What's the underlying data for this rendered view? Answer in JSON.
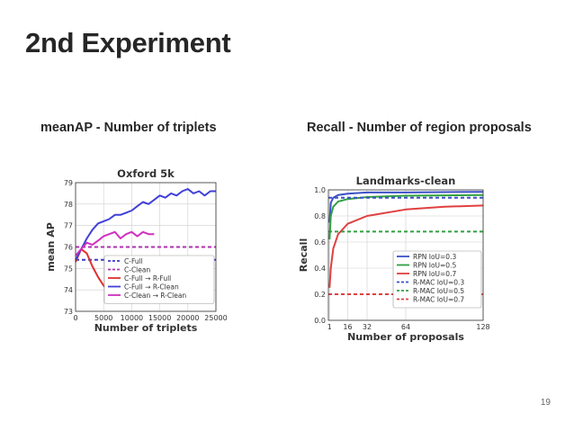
{
  "slide": {
    "title": "2nd Experiment",
    "page_number": "19",
    "caption_left": "meanAP - Number of triplets",
    "caption_right": "Recall -  Number of  region proposals"
  },
  "chart_data": [
    {
      "type": "line",
      "title": "Oxford 5k",
      "xlabel": "Number of triplets",
      "ylabel": "mean AP",
      "xlim": [
        0,
        25000
      ],
      "ylim": [
        73,
        79
      ],
      "xticks": [
        0,
        5000,
        10000,
        15000,
        20000,
        25000
      ],
      "xtick_labels": [
        "0",
        "5000",
        "10000",
        "15000",
        "20000",
        "25000"
      ],
      "yticks": [
        73,
        74,
        75,
        76,
        77,
        78,
        79
      ],
      "ytick_labels": [
        "73",
        "74",
        "75",
        "76",
        "77",
        "78",
        "79"
      ],
      "grid": true,
      "legend": "lower-right",
      "series": [
        {
          "name": "C-Full",
          "style": "dashed",
          "color": "#3b3bc8",
          "x": [
            0,
            25000
          ],
          "y": [
            75.4,
            75.4
          ]
        },
        {
          "name": "C-Clean",
          "style": "dashed",
          "color": "#b030b0",
          "x": [
            0,
            25000
          ],
          "y": [
            76.0,
            76.0
          ]
        },
        {
          "name": "C-Full → R-Full",
          "style": "solid",
          "color": "#e03030",
          "x": [
            0,
            1000,
            2000,
            3000,
            4000,
            5000,
            6000,
            7000,
            8000
          ],
          "y": [
            75.3,
            75.9,
            75.7,
            75.1,
            74.6,
            74.2,
            73.9,
            73.7,
            73.5
          ]
        },
        {
          "name": "C-Full → R-Clean",
          "style": "solid",
          "color": "#4040d8",
          "x": [
            0,
            1000,
            2000,
            3000,
            4000,
            5000,
            6000,
            7000,
            8000,
            9000,
            10000,
            11000,
            12000,
            13000,
            14000,
            15000,
            16000,
            17000,
            18000,
            19000,
            20000,
            21000,
            22000,
            23000,
            24000,
            25000
          ],
          "y": [
            75.4,
            75.9,
            76.4,
            76.8,
            77.1,
            77.2,
            77.3,
            77.5,
            77.5,
            77.6,
            77.7,
            77.9,
            78.1,
            78.0,
            78.2,
            78.4,
            78.3,
            78.5,
            78.4,
            78.6,
            78.7,
            78.5,
            78.6,
            78.4,
            78.6,
            78.6
          ]
        },
        {
          "name": "C-Clean → R-Clean",
          "style": "solid",
          "color": "#d030c0",
          "x": [
            0,
            1000,
            2000,
            3000,
            4000,
            5000,
            6000,
            7000,
            8000,
            9000,
            10000,
            11000,
            12000,
            13000,
            14000
          ],
          "y": [
            75.6,
            75.9,
            76.2,
            76.1,
            76.3,
            76.5,
            76.6,
            76.7,
            76.4,
            76.6,
            76.7,
            76.5,
            76.7,
            76.6,
            76.6
          ]
        }
      ]
    },
    {
      "type": "line",
      "title": "Landmarks-clean",
      "xlabel": "Number of proposals",
      "ylabel": "Recall",
      "xlim": [
        0,
        128
      ],
      "ylim": [
        0.0,
        1.0
      ],
      "xticks": [
        1,
        16,
        32,
        64,
        128
      ],
      "xtick_labels": [
        "1",
        "16",
        "32",
        "64",
        "128"
      ],
      "yticks": [
        0.0,
        0.2,
        0.4,
        0.6,
        0.8,
        1.0
      ],
      "ytick_labels": [
        "0.0",
        "0.2",
        "0.4",
        "0.6",
        "0.8",
        "1.0"
      ],
      "grid": true,
      "legend": "lower-right",
      "series": [
        {
          "name": "RPN IoU=0.3",
          "style": "solid",
          "color": "#3b50c8",
          "x": [
            1,
            2,
            4,
            8,
            16,
            32,
            64,
            128
          ],
          "y": [
            0.75,
            0.9,
            0.94,
            0.96,
            0.97,
            0.98,
            0.98,
            0.985
          ]
        },
        {
          "name": "RPN IoU=0.5",
          "style": "solid",
          "color": "#30a040",
          "x": [
            1,
            2,
            4,
            8,
            16,
            32,
            64,
            128
          ],
          "y": [
            0.62,
            0.8,
            0.87,
            0.91,
            0.93,
            0.945,
            0.955,
            0.96
          ]
        },
        {
          "name": "RPN IoU=0.7",
          "style": "solid",
          "color": "#e04040",
          "x": [
            1,
            2,
            4,
            8,
            16,
            32,
            64,
            96,
            128
          ],
          "y": [
            0.25,
            0.4,
            0.55,
            0.66,
            0.74,
            0.8,
            0.85,
            0.87,
            0.88
          ]
        },
        {
          "name": "R-MAC IoU=0.3",
          "style": "dashed",
          "color": "#3b50c8",
          "x": [
            0,
            128
          ],
          "y": [
            0.94,
            0.94
          ]
        },
        {
          "name": "R-MAC IoU=0.5",
          "style": "dashed",
          "color": "#30a040",
          "x": [
            0,
            128
          ],
          "y": [
            0.68,
            0.68
          ]
        },
        {
          "name": "R-MAC IoU=0.7",
          "style": "dashed",
          "color": "#e04040",
          "x": [
            0,
            128
          ],
          "y": [
            0.2,
            0.2
          ]
        }
      ]
    }
  ]
}
